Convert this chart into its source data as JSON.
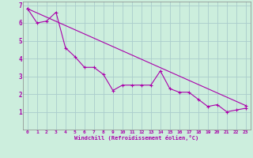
{
  "xlabel": "Windchill (Refroidissement éolien,°C)",
  "background_color": "#cceedd",
  "grid_color": "#aacccc",
  "line_color": "#aa00aa",
  "xlim": [
    -0.5,
    23.5
  ],
  "ylim": [
    0,
    7.2
  ],
  "xticks": [
    0,
    1,
    2,
    3,
    4,
    5,
    6,
    7,
    8,
    9,
    10,
    11,
    12,
    13,
    14,
    15,
    16,
    17,
    18,
    19,
    20,
    21,
    22,
    23
  ],
  "yticks": [
    1,
    2,
    3,
    4,
    5,
    6,
    7
  ],
  "line1_x": [
    0,
    1,
    2,
    3,
    4,
    5,
    6,
    7,
    8,
    9,
    10,
    11,
    12,
    13,
    14,
    15,
    16,
    17,
    18,
    19,
    20,
    21,
    22,
    23
  ],
  "line1_y": [
    6.8,
    6.0,
    6.1,
    6.6,
    4.6,
    4.1,
    3.5,
    3.5,
    3.1,
    2.2,
    2.5,
    2.5,
    2.5,
    2.5,
    3.3,
    2.3,
    2.1,
    2.1,
    1.7,
    1.3,
    1.4,
    1.0,
    1.1,
    1.2
  ],
  "line2_x": [
    0,
    23
  ],
  "line2_y": [
    6.8,
    1.35
  ]
}
